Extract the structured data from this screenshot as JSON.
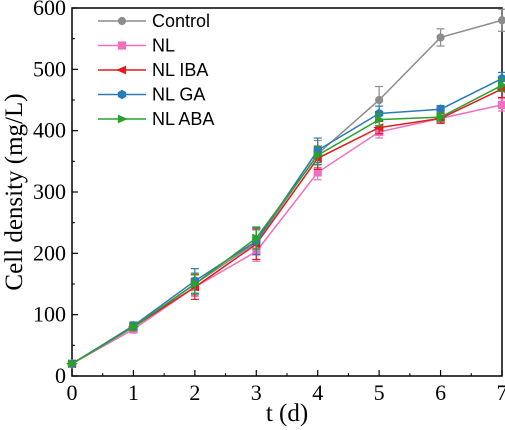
{
  "chart_data": {
    "type": "line",
    "title": "",
    "xlabel": "t (d)",
    "ylabel": "Cell density (mg/L)",
    "xlim": [
      0,
      7
    ],
    "ylim": [
      0,
      600
    ],
    "xticks": [
      "0",
      "1",
      "2",
      "3",
      "4",
      "5",
      "6",
      "7"
    ],
    "yticks": [
      "0",
      "100",
      "200",
      "300",
      "400",
      "500",
      "600"
    ],
    "grid": false,
    "legend_position": "top-left",
    "x": [
      0,
      1,
      2,
      3,
      4,
      5,
      6,
      7
    ],
    "series": [
      {
        "name": "Control",
        "color": "#8c8c8c",
        "marker": "circle",
        "values": [
          20,
          80,
          150,
          218,
          362,
          450,
          552,
          580
        ],
        "errors": [
          3,
          6,
          18,
          20,
          22,
          22,
          14,
          18
        ]
      },
      {
        "name": "NL",
        "color": "#f06fc0",
        "marker": "square",
        "values": [
          20,
          76,
          145,
          203,
          332,
          398,
          420,
          442
        ],
        "errors": [
          3,
          6,
          15,
          16,
          12,
          10,
          8,
          10
        ]
      },
      {
        "name": "NL IBA",
        "color": "#e41a1c",
        "marker": "triangle-left",
        "values": [
          20,
          80,
          145,
          215,
          355,
          405,
          420,
          468
        ],
        "errors": [
          3,
          6,
          20,
          25,
          18,
          10,
          8,
          14
        ]
      },
      {
        "name": "NL GA",
        "color": "#2b7bb9",
        "marker": "hexagon",
        "values": [
          20,
          82,
          155,
          220,
          368,
          428,
          435,
          485
        ],
        "errors": [
          3,
          6,
          20,
          22,
          20,
          12,
          6,
          10
        ]
      },
      {
        "name": "NL ABA",
        "color": "#2ca02c",
        "marker": "triangle-right",
        "values": [
          20,
          80,
          150,
          225,
          360,
          418,
          422,
          474
        ],
        "errors": [
          3,
          6,
          16,
          18,
          15,
          10,
          7,
          10
        ]
      }
    ]
  }
}
